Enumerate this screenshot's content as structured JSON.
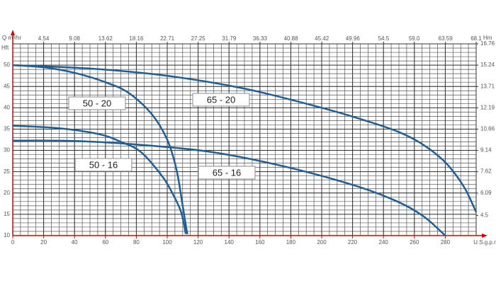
{
  "chart_data": {
    "type": "line",
    "xlabel": "U.S.g.p.m",
    "x2label": "Q m³/hr",
    "ylabel": "Hft",
    "y2label": "Hm",
    "xlim": [
      0,
      300
    ],
    "xticks": [
      0,
      20,
      40,
      60,
      80,
      100,
      120,
      140,
      160,
      180,
      200,
      220,
      240,
      260,
      280
    ],
    "x2lim": [
      0,
      68.1
    ],
    "x2ticks": [
      4.54,
      9.08,
      13.62,
      18.16,
      22.71,
      27.25,
      31.79,
      36.33,
      40.88,
      45.42,
      49.96,
      54.5,
      {
        "value": 59,
        "label": "59.0"
      },
      63.59,
      68.1
    ],
    "ylim": [
      10,
      55
    ],
    "yticks": [
      10,
      15,
      20,
      25,
      30,
      35,
      40,
      45,
      50
    ],
    "y2lim": [
      3.048,
      16.76
    ],
    "y2ticks": [
      4.5,
      6.09,
      7.62,
      9.14,
      10.66,
      12.19,
      13.71,
      15.24,
      16.76
    ],
    "grid": true,
    "series": [
      {
        "name": "50 - 20",
        "color": "#1f5f99",
        "x": [
          0,
          20,
          40,
          60,
          75,
          90,
          100,
          106,
          110,
          113
        ],
        "values": [
          50,
          49.5,
          48.2,
          46,
          43.5,
          38.5,
          32.5,
          25.5,
          17,
          10.3
        ]
      },
      {
        "name": "65 - 20",
        "color": "#1f5f99",
        "x": [
          0,
          50,
          100,
          150,
          200,
          230,
          250,
          265,
          280,
          292,
          300
        ],
        "values": [
          50,
          49.2,
          47.5,
          44.5,
          40,
          36.8,
          34.3,
          31.5,
          27.2,
          21.5,
          15.5
        ]
      },
      {
        "name": "50 - 16",
        "color": "#1f5f99",
        "x": [
          0,
          30,
          56,
          70,
          83,
          97,
          104,
          109,
          112
        ],
        "values": [
          35.8,
          35.2,
          33.8,
          32,
          29.6,
          23.8,
          19.5,
          15.5,
          10.4
        ]
      },
      {
        "name": "65 - 16",
        "color": "#1f5f99",
        "x": [
          0,
          40,
          83,
          129,
          175,
          221,
          249,
          266,
          280
        ],
        "values": [
          32.3,
          32.2,
          31.3,
          29.6,
          26.3,
          21.8,
          18,
          14.5,
          10
        ]
      }
    ]
  }
}
